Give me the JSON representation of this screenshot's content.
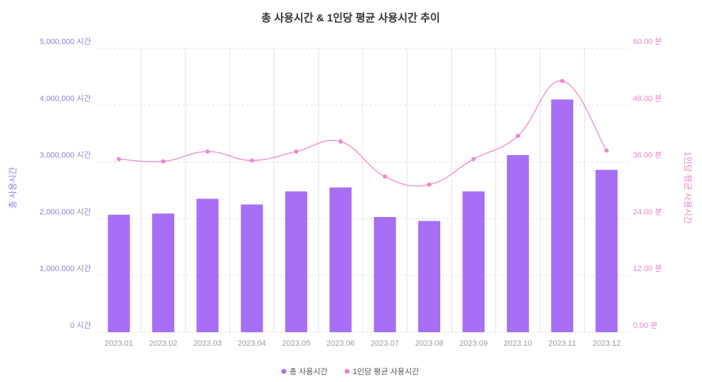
{
  "chart_data": {
    "type": "bar-line-combo",
    "title": "총 사용시간 & 1인당 평균 사용시간 추이",
    "categories": [
      "2023.01",
      "2023.02",
      "2023.03",
      "2023.04",
      "2023.05",
      "2023.06",
      "2023.07",
      "2023.08",
      "2023.09",
      "2023.10",
      "2023.11",
      "2023.12"
    ],
    "y_left": {
      "label": "총 사용시간",
      "range": [
        0,
        5000000
      ],
      "ticks": [
        "0 시간",
        "1,000,000 시간",
        "2,000,000 시간",
        "3,000,000 시간",
        "4,000,000 시간",
        "5,000,000 시간"
      ]
    },
    "y_right": {
      "label": "1인당 평균 사용시간",
      "range": [
        0,
        60
      ],
      "ticks": [
        "0.00 분",
        "12.00 분",
        "24.00 분",
        "36.00 분",
        "48.00 분",
        "60.00 분"
      ]
    },
    "series": [
      {
        "name": "총 사용시간",
        "type": "bar",
        "axis": "left",
        "color": "#a66ff5",
        "values": [
          2070000,
          2090000,
          2350000,
          2250000,
          2480000,
          2550000,
          2030000,
          1960000,
          2480000,
          3120000,
          4100000,
          2860000
        ]
      },
      {
        "name": "1인당 평균 사용시간",
        "type": "line",
        "axis": "right",
        "color": "#ef86cf",
        "values": [
          36.6,
          36.1,
          38.2,
          36.3,
          38.2,
          40.3,
          32.9,
          31.2,
          36.6,
          41.5,
          53.1,
          38.4
        ]
      }
    ],
    "legend_position": "bottom-center",
    "grid": true
  }
}
